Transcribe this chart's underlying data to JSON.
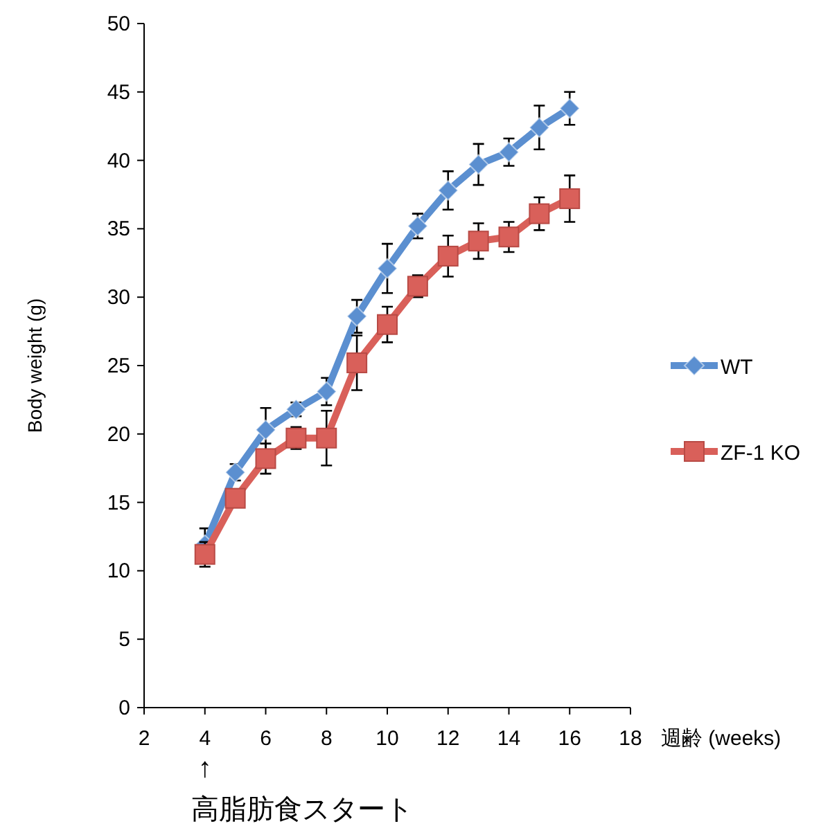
{
  "chart_data": {
    "type": "line",
    "xlabel": "週齢 (weeks)",
    "ylabel": "Body weight (g)",
    "xlim": [
      2,
      18
    ],
    "xticks": [
      2,
      4,
      6,
      8,
      10,
      12,
      14,
      16,
      18
    ],
    "ylim": [
      0,
      50
    ],
    "yticks": [
      0,
      5,
      10,
      15,
      20,
      25,
      30,
      35,
      40,
      45,
      50
    ],
    "grid": false,
    "legend": "right",
    "x": [
      4,
      5,
      6,
      7,
      8,
      9,
      10,
      11,
      12,
      13,
      14,
      15,
      16
    ],
    "series": [
      {
        "name": "WT",
        "color": "#5b8fd0",
        "marker": "diamond",
        "values": [
          11.9,
          17.2,
          20.3,
          21.8,
          23.1,
          28.6,
          32.1,
          35.2,
          37.8,
          39.7,
          40.6,
          42.4,
          43.8
        ],
        "errors": [
          1.2,
          0.6,
          1.6,
          0.5,
          1.0,
          1.2,
          1.8,
          0.9,
          1.4,
          1.5,
          1.0,
          1.6,
          1.2
        ]
      },
      {
        "name": "ZF-1 KO",
        "color": "#d9605a",
        "marker": "square",
        "values": [
          11.2,
          15.3,
          18.2,
          19.7,
          19.7,
          25.2,
          28.0,
          30.8,
          33.0,
          34.1,
          34.4,
          36.1,
          37.2
        ],
        "errors": [
          0.9,
          null,
          1.1,
          0.8,
          2.0,
          2.0,
          1.3,
          0.8,
          1.5,
          1.3,
          1.1,
          1.2,
          1.7
        ]
      }
    ],
    "annotations": [
      "↑",
      "高脂肪食スタート"
    ]
  }
}
